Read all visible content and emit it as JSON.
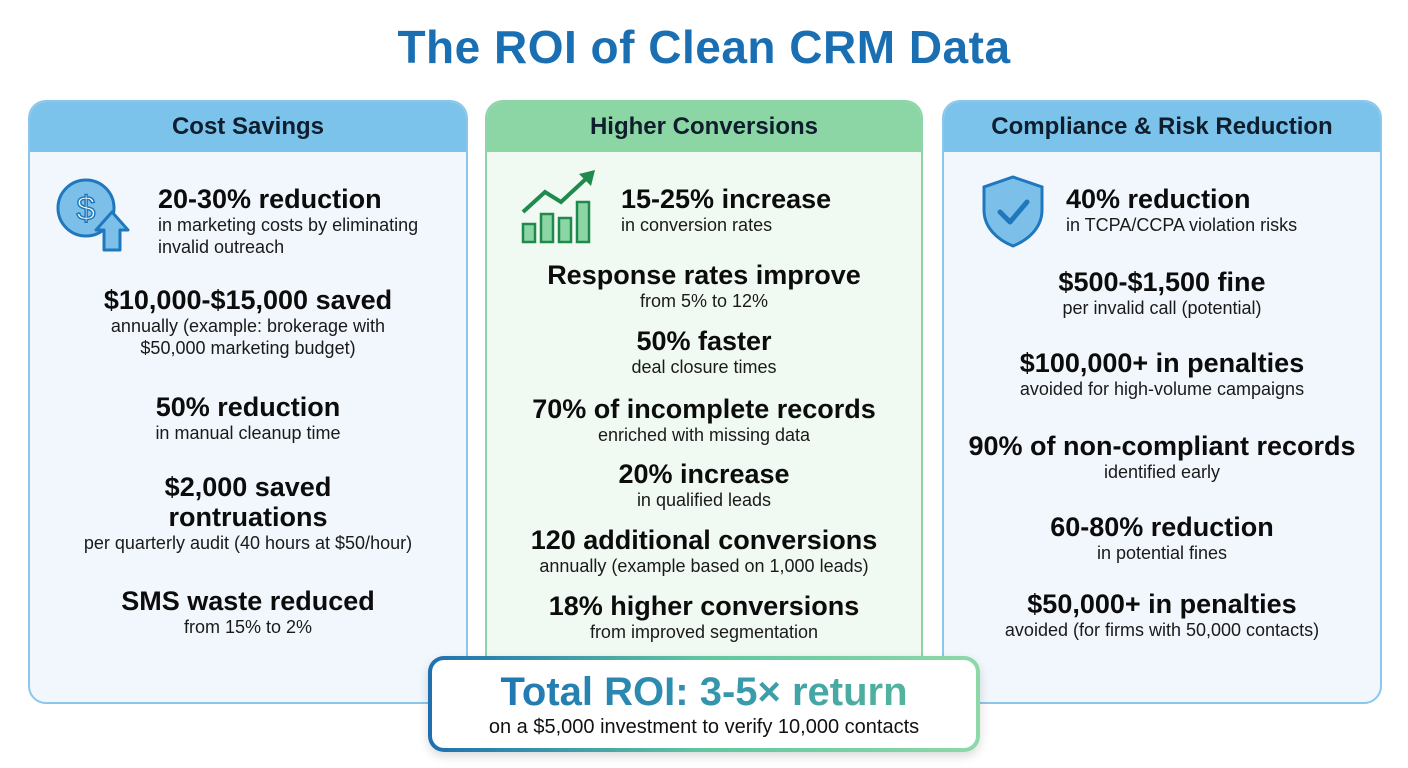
{
  "title": "The ROI of Clean CRM Data",
  "columns": [
    {
      "header": "Cost Savings",
      "icon": "dollar-up-arrow-icon",
      "items": [
        {
          "heading": "20-30% reduction",
          "sub": "in marketing costs by eliminating invalid outreach"
        },
        {
          "heading": "$10,000-$15,000 saved",
          "sub": "annually (example: brokerage with $50,000 marketing budget)"
        },
        {
          "heading": "50% reduction",
          "sub": "in manual cleanup time"
        },
        {
          "heading": "$2,000 saved rontruations",
          "sub": "per quarterly audit (40 hours at $50/hour)"
        },
        {
          "heading": "SMS waste reduced",
          "sub": "from 15% to 2%"
        }
      ]
    },
    {
      "header": "Higher Conversions",
      "icon": "growth-chart-icon",
      "items": [
        {
          "heading": "15-25% increase",
          "sub": "in conversion rates"
        },
        {
          "heading": "Response rates improve",
          "sub": "from 5% to 12%"
        },
        {
          "heading": "50% faster",
          "sub": "deal closure times"
        },
        {
          "heading": "70% of incomplete records",
          "sub": "enriched with missing data"
        },
        {
          "heading": "20% increase",
          "sub": "in qualified leads"
        },
        {
          "heading": "120 additional conversions",
          "sub": "annually (example based on 1,000 leads)"
        },
        {
          "heading": "18% higher conversions",
          "sub": "from improved segmentation"
        }
      ]
    },
    {
      "header": "Compliance & Risk Reduction",
      "icon": "shield-check-icon",
      "items": [
        {
          "heading": "40% reduction",
          "sub": "in TCPA/CCPA violation risks"
        },
        {
          "heading": "$500-$1,500 fine",
          "sub": "per invalid call (potential)"
        },
        {
          "heading": "$100,000+ in penalties",
          "sub": "avoided for high-volume campaigns"
        },
        {
          "heading": "90% of non-compliant records",
          "sub": "identified early"
        },
        {
          "heading": "60-80% reduction",
          "sub": "in potential fines"
        },
        {
          "heading": "$50,000+ in penalties",
          "sub": "avoided (for firms with 50,000 contacts)"
        }
      ]
    }
  ],
  "total": {
    "heading": "Total ROI: 3-5× return",
    "sub": "on a $5,000 investment to verify 10,000 contacts"
  },
  "colors": {
    "title": "#1a6fb3",
    "blue_header": "#7cc3ec",
    "green_header": "#8cd6a5"
  }
}
